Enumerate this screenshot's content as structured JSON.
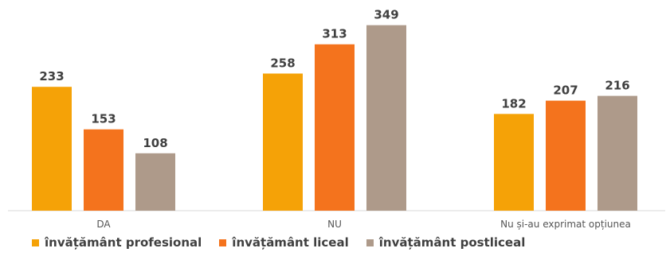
{
  "chart_data": {
    "type": "bar",
    "categories": [
      "DA",
      "NU",
      "Nu și-au exprimat opțiunea"
    ],
    "series": [
      {
        "name": "învățământ profesional",
        "color": "#F5A207",
        "values": [
          233,
          258,
          182
        ]
      },
      {
        "name": "învățământ liceal",
        "color": "#F4731D",
        "values": [
          153,
          313,
          207
        ]
      },
      {
        "name": "învățământ postliceal",
        "color": "#AE9A8A",
        "values": [
          108,
          349,
          216
        ]
      }
    ],
    "ylim": [
      0,
      350
    ],
    "grid": false,
    "legend_position": "bottom",
    "data_labels": true
  }
}
